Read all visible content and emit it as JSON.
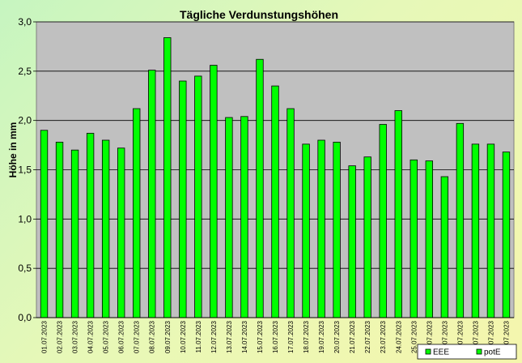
{
  "colors": {
    "plot_background": "#c0c0c0",
    "bar_fill": "#00ff00",
    "bar_stroke": "#000000",
    "gridline": "#000000"
  },
  "chart_data": {
    "type": "bar",
    "title": "Tägliche Verdunstungshöhen",
    "xlabel": "",
    "ylabel": "Höhe in mm",
    "ylim": [
      0,
      3
    ],
    "yticks": [
      "0,0",
      "0,5",
      "1,0",
      "1,5",
      "2,0",
      "2,5",
      "3,0"
    ],
    "grid": true,
    "legend_position": "bottom-right",
    "legend": [
      {
        "label": "EEE"
      },
      {
        "label": "potE"
      }
    ],
    "categories": [
      "01.07.2023",
      "02.07.2023",
      "03.07.2023",
      "04.07.2023",
      "05.07.2023",
      "06.07.2023",
      "07.07.2023",
      "08.07.2023",
      "09.07.2023",
      "10.07.2023",
      "11.07.2023",
      "12.07.2023",
      "13.07.2023",
      "14.07.2023",
      "15.07.2023",
      "16.07.2023",
      "17.07.2023",
      "18.07.2023",
      "19.07.2023",
      "20.07.2023",
      "21.07.2023",
      "22.07.2023",
      "23.07.2023",
      "24.07.2023",
      "25.07.2023",
      "26.07.2023",
      "27.07.2023",
      "28.07.2023",
      "29.07.2023",
      "30.07.2023",
      "31.07.2023"
    ],
    "series": [
      {
        "values": [
          1.9,
          1.78,
          1.7,
          1.87,
          1.8,
          1.72,
          2.12,
          2.51,
          2.84,
          2.4,
          2.45,
          2.56,
          2.03,
          2.04,
          2.62,
          2.35,
          2.12,
          1.76,
          1.8,
          1.78,
          1.54,
          1.63,
          1.96,
          2.1,
          1.6,
          1.59,
          1.43,
          1.97,
          1.76,
          1.76,
          1.68
        ]
      }
    ]
  }
}
